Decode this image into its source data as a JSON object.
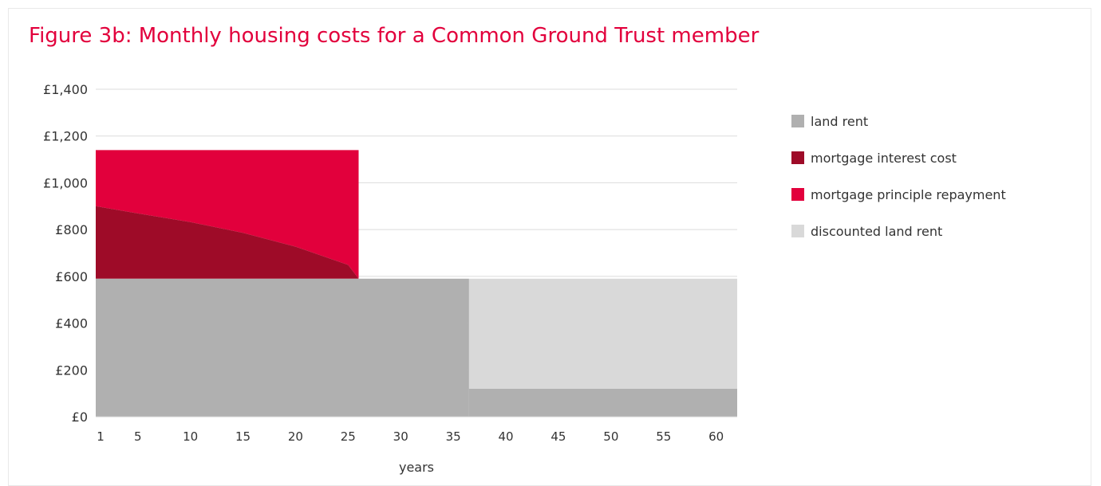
{
  "chart_data": {
    "type": "area",
    "stacked": true,
    "title": "Figure 3b: Monthly housing costs for a Common Ground Trust member",
    "xlabel": "years",
    "ylabel": "",
    "xlim": [
      1,
      62
    ],
    "ylim": [
      0,
      1400
    ],
    "x_ticks": [
      1,
      5,
      10,
      15,
      20,
      25,
      30,
      35,
      40,
      45,
      50,
      55,
      60
    ],
    "y_ticks": [
      0,
      200,
      400,
      600,
      800,
      1000,
      1200,
      1400
    ],
    "y_tick_labels": [
      "£0",
      "£200",
      "£400",
      "£600",
      "£800",
      "£1,000",
      "£1,200",
      "£1,400"
    ],
    "grid": true,
    "legend_position": "right",
    "series": [
      {
        "name": "land rent",
        "color": "#b0b0b0",
        "segments": [
          {
            "x_start": 1,
            "x_end": 36.5,
            "value": 590
          },
          {
            "x_start": 36.5,
            "x_end": 62,
            "value": 120
          }
        ]
      },
      {
        "name": "mortgage interest cost",
        "color": "#9e0b28",
        "x": [
          1,
          5,
          10,
          15,
          20,
          25,
          26
        ],
        "values": [
          310,
          279,
          242,
          196,
          137,
          59,
          0
        ]
      },
      {
        "name": "mortgage principle repayment",
        "color": "#e2003c",
        "x": [
          1,
          5,
          10,
          15,
          20,
          25,
          26
        ],
        "values": [
          240,
          271,
          308,
          354,
          413,
          491,
          550
        ]
      },
      {
        "name": "discounted land rent",
        "color": "#d9d9d9",
        "segments": [
          {
            "x_start": 36.5,
            "x_end": 62,
            "value": 470
          }
        ]
      }
    ]
  }
}
